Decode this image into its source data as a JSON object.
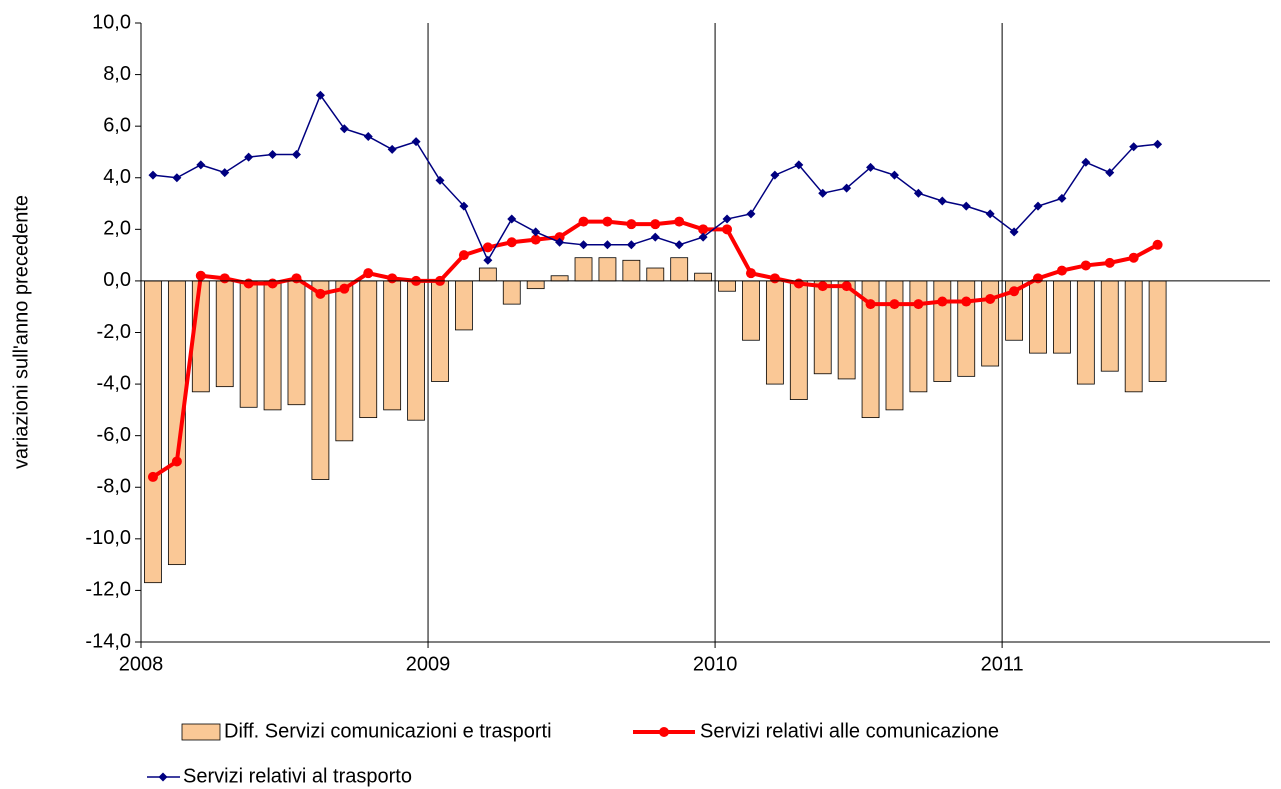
{
  "chart_data": {
    "type": "bar_line",
    "y_label": "variazioni sull'anno precedente",
    "categories": [
      "2008",
      null,
      null,
      null,
      null,
      null,
      null,
      null,
      null,
      null,
      null,
      null,
      "2009",
      null,
      null,
      null,
      null,
      null,
      null,
      null,
      null,
      null,
      null,
      null,
      "2010",
      null,
      null,
      null,
      null,
      null,
      null,
      null,
      null,
      null,
      null,
      null,
      "2011",
      null,
      null,
      null,
      null,
      null,
      null
    ],
    "ylim": [
      -14,
      10
    ],
    "yticks": [
      {
        "value": -14,
        "label": "-14,0"
      },
      {
        "value": -12,
        "label": "-12,0"
      },
      {
        "value": -10,
        "label": "-10,0"
      },
      {
        "value": -8,
        "label": "-8,0"
      },
      {
        "value": -6,
        "label": "-6,0"
      },
      {
        "value": -4,
        "label": "-4,0"
      },
      {
        "value": -2,
        "label": "-2,0"
      },
      {
        "value": 0,
        "label": "0,0"
      },
      {
        "value": 2,
        "label": "2,0"
      },
      {
        "value": 4,
        "label": "4,0"
      },
      {
        "value": 6,
        "label": "6,0"
      },
      {
        "value": 8,
        "label": "8,0"
      },
      {
        "value": 10,
        "label": "10,0"
      }
    ],
    "series": [
      {
        "name": "Diff. Servizi comunicazioni e trasporti",
        "kind": "bar",
        "color": "#fac896",
        "values": [
          -11.7,
          -11.0,
          -4.3,
          -4.1,
          -4.9,
          -5.0,
          -4.8,
          -7.7,
          -6.2,
          -5.3,
          -5.0,
          -5.4,
          -3.9,
          -1.9,
          0.5,
          -0.9,
          -0.3,
          0.2,
          0.9,
          0.9,
          0.8,
          0.5,
          0.9,
          0.3,
          -0.4,
          -2.3,
          -4.0,
          -4.6,
          -3.6,
          -3.8,
          -5.3,
          -5.0,
          -4.3,
          -3.9,
          -3.7,
          -3.3,
          -2.3,
          -2.8,
          -2.8,
          -4.0,
          -3.5,
          -4.3,
          -3.9
        ]
      },
      {
        "name": "Servizi relativi alle comunicazione",
        "kind": "line",
        "color": "#ff0000",
        "values": [
          -7.6,
          -7.0,
          0.2,
          0.1,
          -0.1,
          -0.1,
          0.1,
          -0.5,
          -0.3,
          0.3,
          0.1,
          0.0,
          0.0,
          1.0,
          1.3,
          1.5,
          1.6,
          1.7,
          2.3,
          2.3,
          2.2,
          2.2,
          2.3,
          2.0,
          2.0,
          0.3,
          0.1,
          -0.1,
          -0.2,
          -0.2,
          -0.9,
          -0.9,
          -0.9,
          -0.8,
          -0.8,
          -0.7,
          -0.4,
          0.1,
          0.4,
          0.6,
          0.7,
          0.9,
          1.4
        ]
      },
      {
        "name": "Servizi relativi al trasporto",
        "kind": "line",
        "color": "#000080",
        "values": [
          4.1,
          4.0,
          4.5,
          4.2,
          4.8,
          4.9,
          4.9,
          7.2,
          5.9,
          5.6,
          5.1,
          5.4,
          3.9,
          2.9,
          0.8,
          2.4,
          1.9,
          1.5,
          1.4,
          1.4,
          1.4,
          1.7,
          1.4,
          1.7,
          2.4,
          2.6,
          4.1,
          4.5,
          3.4,
          3.6,
          4.4,
          4.1,
          3.4,
          3.1,
          2.9,
          2.6,
          1.9,
          2.9,
          3.2,
          4.6,
          4.2,
          5.2,
          5.3
        ]
      }
    ]
  }
}
